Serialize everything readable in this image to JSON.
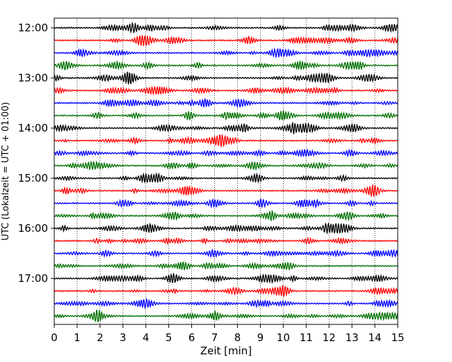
{
  "chart_data": {
    "type": "line",
    "title": "",
    "xlabel": "Zeit  [min]",
    "ylabel": "UTC (Lokalzeit = UTC + 01:00)",
    "xlim": [
      0,
      15
    ],
    "x_ticks": [
      "0",
      "1",
      "2",
      "3",
      "4",
      "5",
      "6",
      "7",
      "8",
      "9",
      "10",
      "11",
      "12",
      "13",
      "14",
      "15"
    ],
    "y_tick_labels": [
      "12:00",
      "13:00",
      "14:00",
      "15:00",
      "16:00",
      "17:00"
    ],
    "grid": "vertical dotted",
    "trace_interval_minutes": 15,
    "start_time": "12:00",
    "trace_count": 24,
    "trace_color_cycle": [
      "#000000",
      "#ff0000",
      "#0000ff",
      "#007000"
    ]
  }
}
